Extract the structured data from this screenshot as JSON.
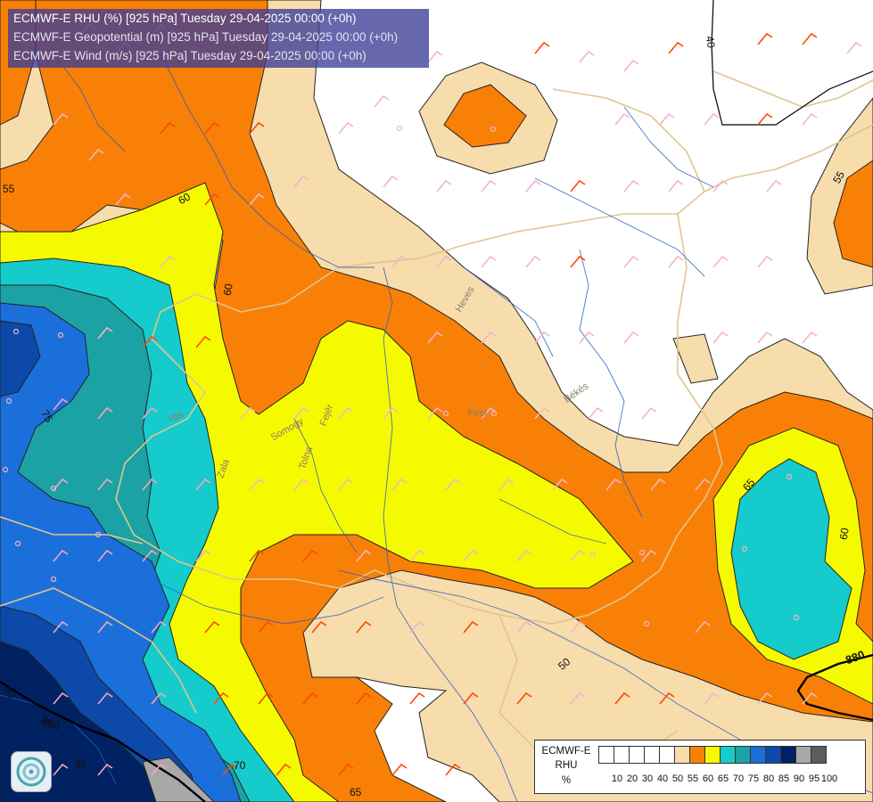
{
  "title": {
    "line1": "ECMWF-E RHU (%) [925 hPa] Tuesday 29-04-2025 00:00 (+0h)",
    "line2": "ECMWF-E Geopotential (m) [925 hPa] Tuesday 29-04-2025 00:00 (+0h)",
    "line3": "ECMWF-E Wind (m/s) [925 hPa] Tuesday 29-04-2025 00:00 (+0h)"
  },
  "legend": {
    "model": "ECMWF-E",
    "variable": "RHU",
    "unit": "%",
    "colors": [
      "#ffffff",
      "#ffffff",
      "#ffffff",
      "#ffffff",
      "#ffffff",
      "#f7dcac",
      "#f98006",
      "#f6fa00",
      "#16cbcb",
      "#1ba2a4",
      "#1b6fda",
      "#0d49a8",
      "#002162",
      "#a8a8a8",
      "#5c5c5c"
    ],
    "ticks": [
      "10",
      "20",
      "30",
      "40",
      "50",
      "55",
      "60",
      "65",
      "70",
      "75",
      "80",
      "85",
      "90",
      "95",
      "100"
    ]
  },
  "contour_labels": {
    "rhu": [
      "55",
      "60",
      "60",
      "40",
      "55",
      "65",
      "60",
      "50",
      "65",
      "70",
      "75",
      "85"
    ],
    "geopotential": [
      "860",
      "880",
      "90"
    ]
  },
  "map_labels": [
    "Vas",
    "Somogy",
    "Fejér",
    "Tolna",
    "Zala",
    "Pest",
    "Heves",
    "Békés"
  ],
  "colors": {
    "rhu_50_55": "#f7dcac",
    "rhu_55_60": "#f98006",
    "rhu_60_65": "#f6fa00",
    "rhu_65_70": "#16cbcb",
    "rhu_70_75": "#1ba2a4",
    "rhu_75_80": "#1b6fda",
    "rhu_80_85": "#0d49a8",
    "rhu_85_90": "#002162",
    "rhu_90_95": "#a8a8a8",
    "borders": "#e0c58f",
    "rivers": "#2a5fbf",
    "wind_barbs_dry": "#f4b4c8",
    "wind_barbs_moist": "#f7a3c2",
    "wind_barbs_orange": "#ff4a00",
    "title_bg": "#3c3c96"
  }
}
